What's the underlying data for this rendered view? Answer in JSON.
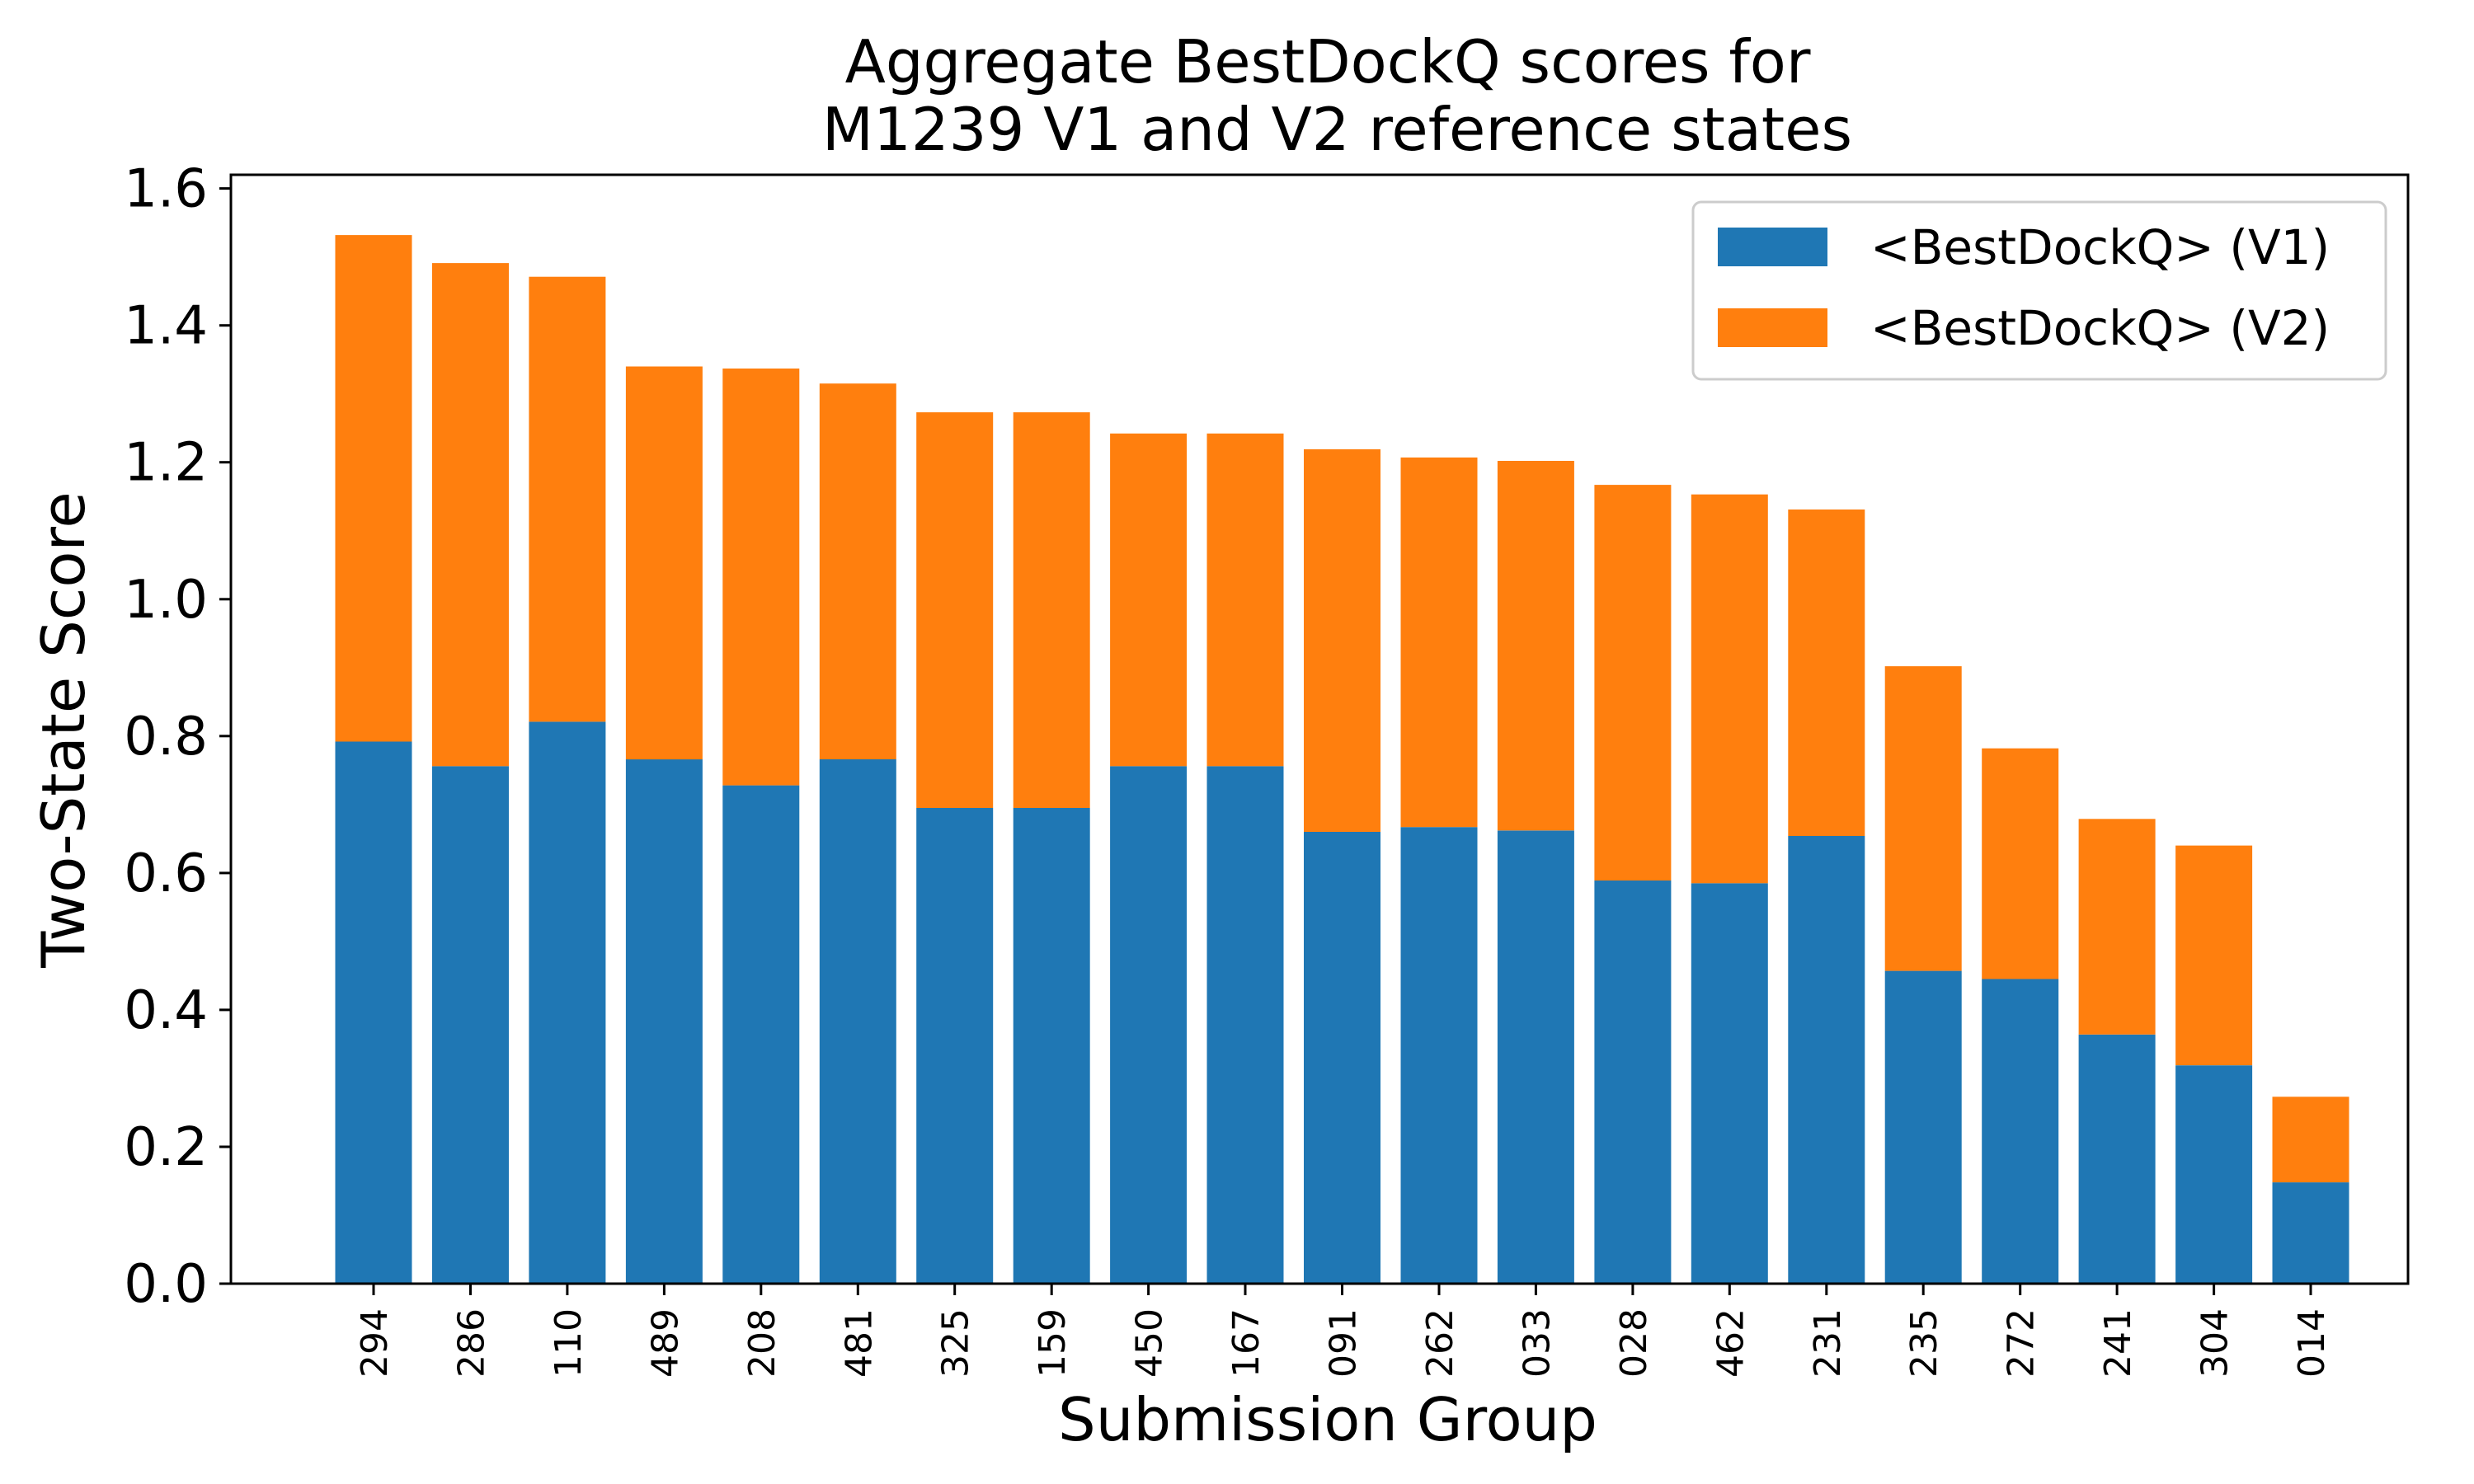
{
  "chart_data": {
    "type": "bar",
    "stacked": true,
    "title_lines": [
      "Aggregate BestDockQ scores for",
      " M1239 V1 and V2 reference states"
    ],
    "xlabel": "Submission Group",
    "ylabel": "Two-State Score",
    "ylim": [
      0,
      1.62
    ],
    "yticks": [
      "0.0",
      "0.2",
      "0.4",
      "0.6",
      "0.8",
      "1.0",
      "1.2",
      "1.4",
      "1.6"
    ],
    "categories": [
      "294",
      "286",
      "110",
      "489",
      "208",
      "481",
      "325",
      "159",
      "450",
      "167",
      "091",
      "262",
      "033",
      "028",
      "462",
      "231",
      "235",
      "272",
      "241",
      "304",
      "014"
    ],
    "series": [
      {
        "name": "<BestDockQ> (V1)",
        "color": "#1f77b4",
        "values": [
          0.792,
          0.756,
          0.821,
          0.766,
          0.728,
          0.766,
          0.695,
          0.695,
          0.756,
          0.756,
          0.66,
          0.667,
          0.662,
          0.589,
          0.585,
          0.654,
          0.457,
          0.445,
          0.364,
          0.319,
          0.148
        ]
      },
      {
        "name": "<BestDockQ> (V2)",
        "color": "#ff7f0e",
        "values": [
          0.74,
          0.735,
          0.65,
          0.574,
          0.609,
          0.549,
          0.578,
          0.578,
          0.486,
          0.486,
          0.559,
          0.54,
          0.54,
          0.578,
          0.568,
          0.477,
          0.445,
          0.337,
          0.315,
          0.321,
          0.125
        ]
      }
    ],
    "grid": false,
    "legend_position": "top-right"
  }
}
